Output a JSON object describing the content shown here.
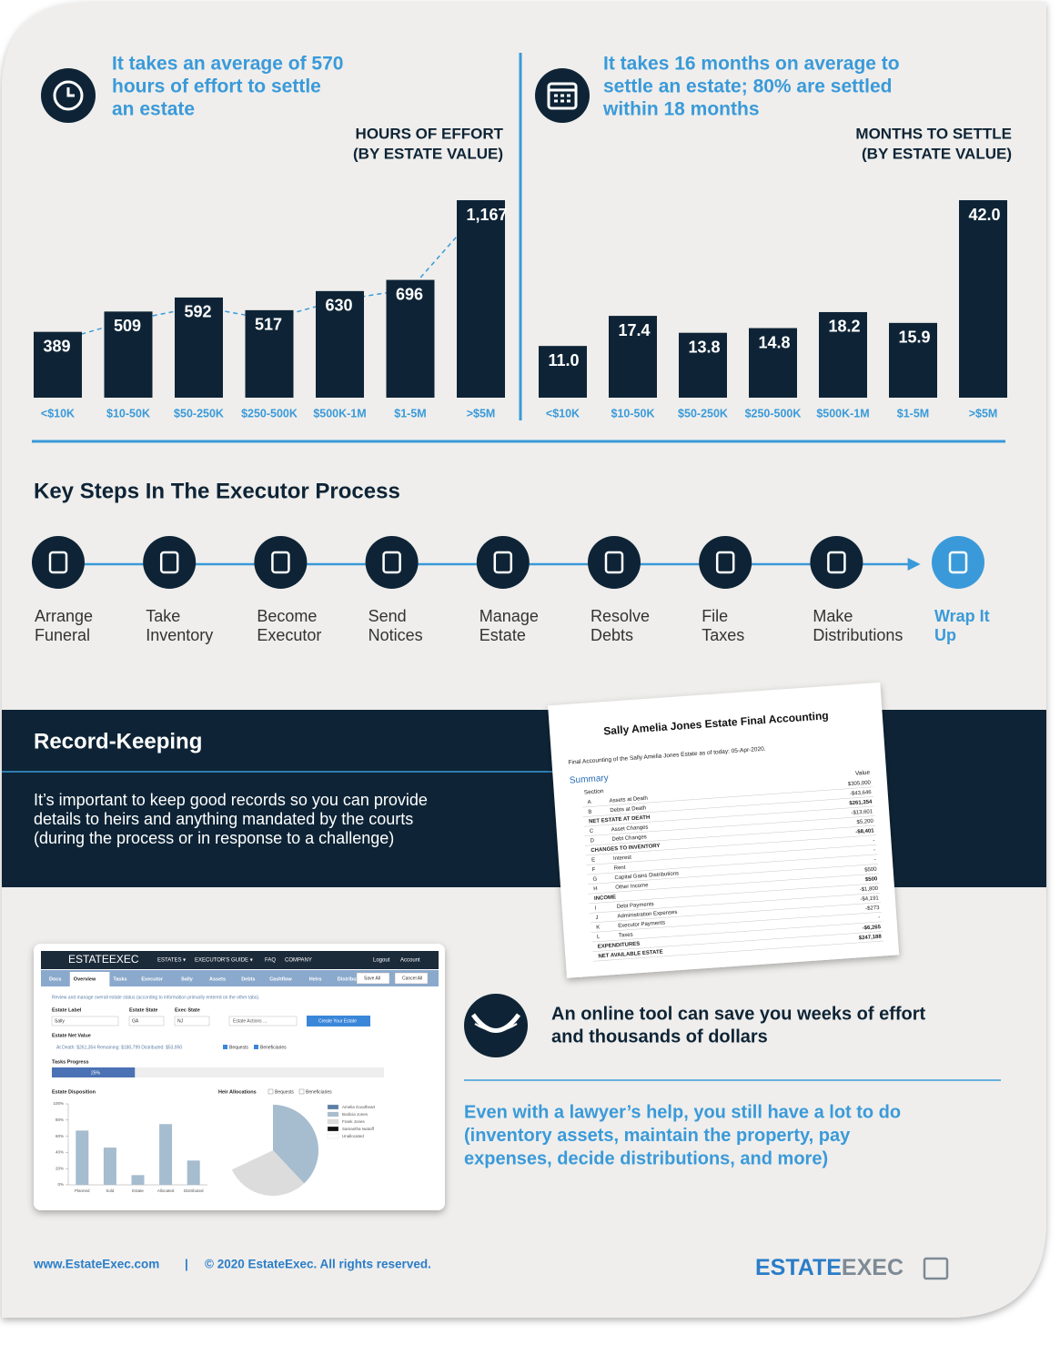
{
  "chart_data": [
    {
      "type": "bar",
      "headline": [
        "It takes an average of 570",
        "hours of effort to settle",
        "an estate"
      ],
      "title": [
        "HOURS OF EFFORT",
        "(BY ESTATE VALUE)"
      ],
      "categories": [
        "<$10K",
        "$10-50K",
        "$50-250K",
        "$250-500K",
        "$500K-1M",
        "$1-5M",
        ">$5M"
      ],
      "values": [
        389,
        509,
        592,
        517,
        630,
        696,
        1167
      ],
      "value_labels": [
        "389",
        "509",
        "592",
        "517",
        "630",
        "696",
        "1,167"
      ],
      "color": "#0e2436",
      "trend_line": true
    },
    {
      "type": "bar",
      "headline": [
        "It takes 16 months on average to",
        "settle an estate; 80% are settled",
        "within 18 months"
      ],
      "title": [
        "MONTHS TO SETTLE",
        "(BY ESTATE VALUE)"
      ],
      "categories": [
        "<$10K",
        "$10-50K",
        "$50-250K",
        "$250-500K",
        "$500K-1M",
        "$1-5M",
        ">$5M"
      ],
      "values": [
        11,
        17.4,
        13.8,
        14.8,
        18.2,
        15.9,
        42
      ],
      "value_labels": [
        "11.0",
        "17.4",
        "13.8",
        "14.8",
        "18.2",
        "15.9",
        "42.0"
      ],
      "color": "#0e2436"
    },
    {
      "type": "bar",
      "title": "Estate Disposition",
      "categories": [
        "Planned",
        "Sold",
        "Estate",
        "Allocated",
        "Distributed"
      ],
      "values": [
        67,
        46,
        12,
        75,
        30
      ],
      "color": "#a6bccf",
      "ylim": [
        0,
        100
      ],
      "yticks": [
        {
          "value": 0,
          "label": "0%"
        },
        {
          "value": 20,
          "label": "20%"
        },
        {
          "value": 40,
          "label": "40%"
        },
        {
          "value": 60,
          "label": "60%"
        },
        {
          "value": 80,
          "label": "80%"
        },
        {
          "value": 100,
          "label": "100%"
        }
      ]
    },
    {
      "type": "pie",
      "title": "Heir Allocations",
      "categories": [
        "Amelia Goodheart",
        "Bodicia Jones",
        "Frank Jones",
        "Samantha Iwatoff",
        "Unallocated"
      ],
      "values": [
        0,
        38,
        30,
        0,
        32
      ],
      "colors": [
        "#5b7fa6",
        "#a6bccf",
        "#dcdcdc",
        "#111111",
        "#ffffff"
      ]
    }
  ],
  "steps_title": "Key Steps In The Executor Process",
  "steps": [
    [
      "Arrange",
      "Funeral"
    ],
    [
      "Take",
      "Inventory"
    ],
    [
      "Become",
      "Executor"
    ],
    [
      "Send",
      "Notices"
    ],
    [
      "Manage",
      "Estate"
    ],
    [
      "Resolve",
      "Debts"
    ],
    [
      "File",
      "Taxes"
    ],
    [
      "Make",
      "Distributions"
    ],
    [
      "Wrap It",
      "Up"
    ]
  ],
  "record": {
    "title": "Record-Keeping",
    "body": [
      "It’s important to keep good records so you can provide",
      "details to heirs and anything mandated by the courts",
      "(during the process or in response to a challenge)"
    ]
  },
  "document": {
    "title": "Sally Amelia Jones Estate Final Accounting",
    "subtitle": "Final Accounting of the Sally Amelia Jones Estate as of today: 05-Apr-2020.",
    "section_title": "Summary",
    "header": [
      "Section",
      "Value"
    ],
    "rows": [
      [
        "A",
        "Assets at Death",
        "$305,000"
      ],
      [
        "B",
        "Debts at Death",
        "-$43,646"
      ],
      [
        "",
        "NET ESTATE AT DEATH",
        "$261,354"
      ],
      [
        "C",
        "Asset Changes",
        "-$13,601"
      ],
      [
        "D",
        "Debt Changes",
        "$5,200"
      ],
      [
        "",
        "CHANGES TO INVENTORY",
        "-$8,401"
      ],
      [
        "E",
        "Interest",
        "-"
      ],
      [
        "F",
        "Rent",
        "-"
      ],
      [
        "G",
        "Capital Gains Distributions",
        "-"
      ],
      [
        "H",
        "Other Income",
        "$500"
      ],
      [
        "",
        "INCOME",
        "$500"
      ],
      [
        "I",
        "Debt Payments",
        "-$1,800"
      ],
      [
        "J",
        "Administration Expenses",
        "-$4,191"
      ],
      [
        "K",
        "Executor Payments",
        "-$273"
      ],
      [
        "L",
        "Taxes",
        "-"
      ],
      [
        "",
        "EXPENDITURES",
        "-$6,265"
      ],
      [
        "",
        "NET AVAILABLE ESTATE",
        "$247,188"
      ]
    ]
  },
  "screenshot": {
    "logo": "ESTATEEXEC",
    "nav": [
      "ESTATES ▾",
      "EXECUTOR'S GUIDE ▾",
      "FAQ",
      "COMPANY"
    ],
    "account": [
      "Logout",
      "Account"
    ],
    "tabs": [
      "Docs",
      "Overview",
      "Tasks",
      "Executor",
      "Sally",
      "Assets",
      "Debts",
      "Cashflow",
      "Heirs",
      "Distributions"
    ],
    "buttons": [
      "Save All",
      "Cancel All"
    ],
    "intro": "Review and manage overall estate status (according to information primarily entered on the other tabs).",
    "fields": [
      [
        "Estate Label",
        "Sally"
      ],
      [
        "Estate State",
        "GA"
      ],
      [
        "Exec State",
        "NJ"
      ]
    ],
    "actions": "Estate Actions ...",
    "create": "Create Your Estate",
    "net_value_label": "Estate Net Value",
    "net_value": "At Death: $261,354   Remaining: $180,799   Distributed: $53,950",
    "checks": [
      "Bequests",
      "Beneficiaries"
    ],
    "progress_label": "Tasks Progress",
    "progress": {
      "value": 25,
      "label": "25%"
    }
  },
  "tool_text": [
    "An online tool can save you weeks of effort",
    "and thousands of dollars"
  ],
  "lawyer_text": [
    "Even with a lawyer’s help, you still have a lot to do",
    "(inventory assets, maintain the property, pay",
    "expenses, decide distributions, and more)"
  ],
  "footer": {
    "url": "www.EstateExec.com",
    "separator": "|",
    "copyright": "© 2020 EstateExec.  All rights reserved.",
    "logo": [
      "ESTATE",
      "EXEC"
    ]
  }
}
